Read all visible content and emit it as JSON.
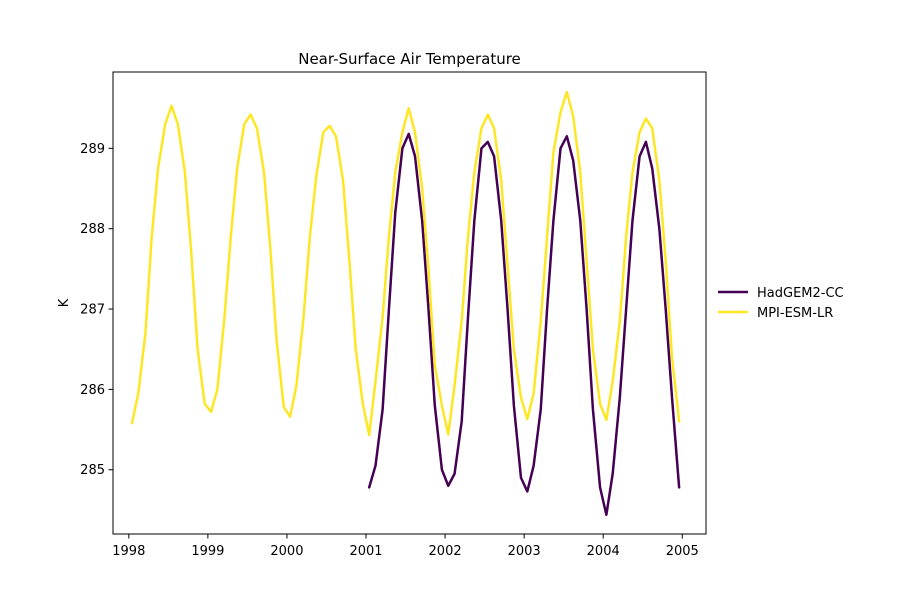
{
  "chart_data": {
    "type": "line",
    "title": "Near-Surface Air Temperature",
    "xlabel": "",
    "ylabel": "K",
    "xlim": [
      1997.8,
      2005.3
    ],
    "ylim": [
      284.2,
      289.95
    ],
    "x_ticks": [
      1998,
      1999,
      2000,
      2001,
      2002,
      2003,
      2004,
      2005
    ],
    "y_ticks": [
      285,
      286,
      287,
      288,
      289
    ],
    "grid": false,
    "legend_position": "right-outside",
    "series": [
      {
        "name": "HadGEM2-CC",
        "color": "#440154",
        "x": [
          2001.04,
          2001.12,
          2001.21,
          2001.29,
          2001.37,
          2001.46,
          2001.54,
          2001.62,
          2001.71,
          2001.79,
          2001.87,
          2001.96,
          2002.04,
          2002.12,
          2002.21,
          2002.29,
          2002.37,
          2002.46,
          2002.54,
          2002.62,
          2002.71,
          2002.79,
          2002.87,
          2002.96,
          2003.04,
          2003.12,
          2003.21,
          2003.29,
          2003.37,
          2003.46,
          2003.54,
          2003.62,
          2003.71,
          2003.79,
          2003.87,
          2003.96,
          2004.04,
          2004.12,
          2004.21,
          2004.29,
          2004.37,
          2004.46,
          2004.54,
          2004.62,
          2004.71,
          2004.79,
          2004.87,
          2004.96
        ],
        "y": [
          284.78,
          285.05,
          285.75,
          287.0,
          288.2,
          289.0,
          289.18,
          288.9,
          288.1,
          287.0,
          285.8,
          285.0,
          284.8,
          284.95,
          285.6,
          286.9,
          288.1,
          289.0,
          289.08,
          288.9,
          288.1,
          287.0,
          285.8,
          284.9,
          284.73,
          285.05,
          285.75,
          287.0,
          288.1,
          289.0,
          289.15,
          288.85,
          288.1,
          287.0,
          285.75,
          284.78,
          284.44,
          284.95,
          285.9,
          287.0,
          288.1,
          288.9,
          289.08,
          288.75,
          288.0,
          287.0,
          285.9,
          284.78
        ]
      },
      {
        "name": "MPI-ESM-LR",
        "color": "#fde725",
        "x": [
          1998.04,
          1998.12,
          1998.21,
          1998.29,
          1998.37,
          1998.46,
          1998.54,
          1998.62,
          1998.71,
          1998.79,
          1998.87,
          1998.96,
          1999.04,
          1999.12,
          1999.21,
          1999.29,
          1999.37,
          1999.46,
          1999.54,
          1999.62,
          1999.71,
          1999.79,
          1999.87,
          1999.96,
          2000.04,
          2000.12,
          2000.21,
          2000.29,
          2000.37,
          2000.46,
          2000.54,
          2000.62,
          2000.71,
          2000.79,
          2000.87,
          2000.96,
          2001.04,
          2001.12,
          2001.21,
          2001.29,
          2001.37,
          2001.46,
          2001.54,
          2001.62,
          2001.71,
          2001.79,
          2001.87,
          2001.96,
          2002.04,
          2002.12,
          2002.21,
          2002.29,
          2002.37,
          2002.46,
          2002.54,
          2002.62,
          2002.71,
          2002.79,
          2002.87,
          2002.96,
          2003.04,
          2003.12,
          2003.21,
          2003.29,
          2003.37,
          2003.46,
          2003.54,
          2003.62,
          2003.71,
          2003.79,
          2003.87,
          2003.96,
          2004.04,
          2004.12,
          2004.21,
          2004.29,
          2004.37,
          2004.46,
          2004.54,
          2004.62,
          2004.71,
          2004.79,
          2004.87,
          2004.96
        ],
        "y": [
          285.58,
          285.95,
          286.7,
          287.9,
          288.75,
          289.3,
          289.53,
          289.3,
          288.7,
          287.7,
          286.5,
          285.82,
          285.72,
          286.0,
          286.9,
          287.9,
          288.75,
          289.3,
          289.42,
          289.25,
          288.7,
          287.75,
          286.6,
          285.78,
          285.66,
          286.05,
          286.9,
          287.9,
          288.65,
          289.2,
          289.28,
          289.15,
          288.6,
          287.6,
          286.5,
          285.82,
          285.43,
          286.1,
          286.9,
          287.9,
          288.7,
          289.2,
          289.5,
          289.2,
          288.5,
          287.5,
          286.3,
          285.8,
          285.44,
          286.05,
          286.85,
          287.9,
          288.7,
          289.25,
          289.42,
          289.25,
          288.6,
          287.55,
          286.5,
          285.9,
          285.63,
          285.95,
          286.85,
          287.9,
          288.95,
          289.45,
          289.7,
          289.4,
          288.7,
          287.6,
          286.5,
          285.82,
          285.62,
          286.1,
          286.85,
          287.9,
          288.7,
          289.2,
          289.37,
          289.25,
          288.6,
          287.6,
          286.4,
          285.6
        ]
      }
    ]
  }
}
